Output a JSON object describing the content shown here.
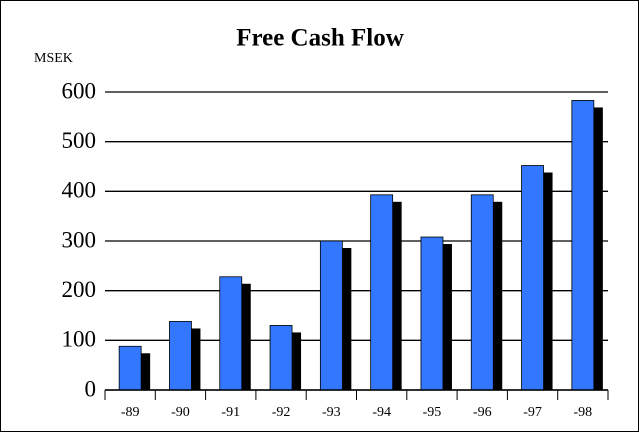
{
  "chart_data": {
    "type": "bar",
    "title": "Free Cash Flow",
    "y_label": "MSEK",
    "categories": [
      "-89",
      "-90",
      "-91",
      "-92",
      "-93",
      "-94",
      "-95",
      "-96",
      "-97",
      "-98"
    ],
    "values": [
      88,
      138,
      228,
      130,
      300,
      393,
      308,
      393,
      452,
      583
    ],
    "color": "#3377ff",
    "shadow_color": "#000000",
    "ylim": [
      0,
      600
    ],
    "yticks": [
      0,
      100,
      200,
      300,
      400,
      500,
      600
    ],
    "grid": true
  }
}
